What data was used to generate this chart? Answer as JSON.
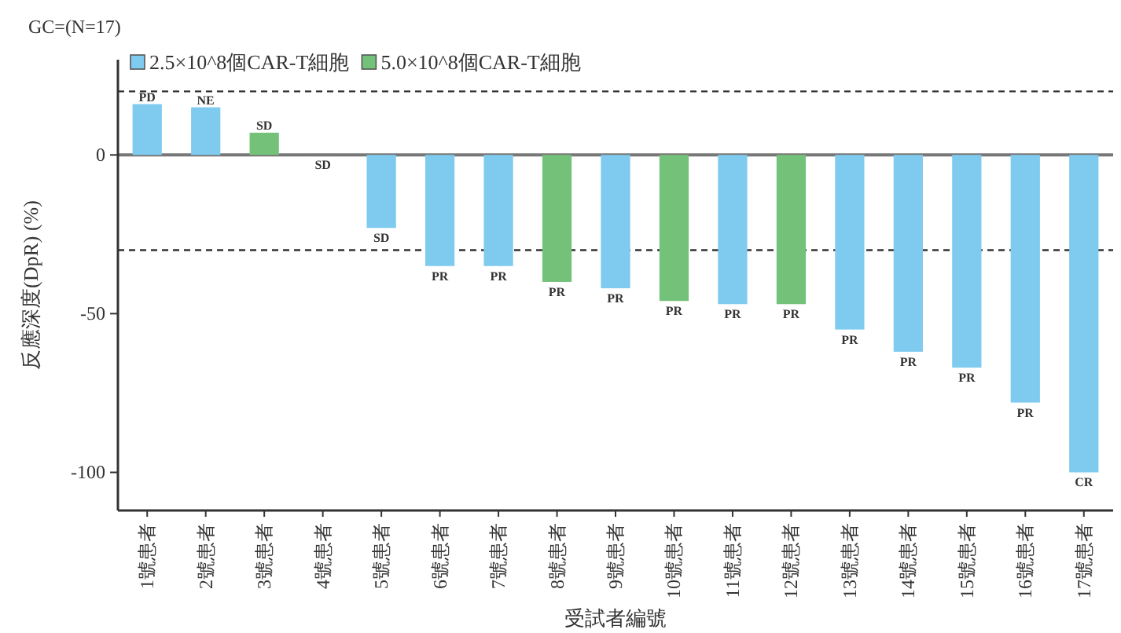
{
  "chart_data": {
    "type": "bar",
    "title": "GC=(N=17)",
    "xlabel": "受試者編號",
    "ylabel": "反應深度(DpR) (%)",
    "categories": [
      "1號患者",
      "2號患者",
      "3號患者",
      "4號患者",
      "5號患者",
      "6號患者",
      "7號患者",
      "8號患者",
      "9號患者",
      "10號患者",
      "11號患者",
      "12號患者",
      "13號患者",
      "14號患者",
      "15號患者",
      "16號患者",
      "17號患者"
    ],
    "series": [
      {
        "name": "2.5×10^8個CAR-T細胞",
        "color": "#7ecbef",
        "values": [
          16,
          15,
          null,
          0,
          -23,
          -35,
          -35,
          null,
          -42,
          null,
          -47,
          null,
          -55,
          -62,
          -67,
          -78,
          -100
        ],
        "value_labels": [
          "PD",
          "NE",
          null,
          "SD",
          "SD",
          "PR",
          "PR",
          null,
          "PR",
          null,
          "PR",
          null,
          "PR",
          "PR",
          "PR",
          "PR",
          "CR"
        ]
      },
      {
        "name": "5.0×10^8個CAR-T細胞",
        "color": "#74c27a",
        "values": [
          null,
          null,
          7,
          null,
          null,
          null,
          null,
          -40,
          null,
          -46,
          null,
          -47,
          null,
          null,
          null,
          null,
          null
        ],
        "value_labels": [
          null,
          null,
          "SD",
          null,
          null,
          null,
          null,
          "PR",
          null,
          "PR",
          null,
          "PR",
          null,
          null,
          null,
          null,
          null
        ]
      }
    ],
    "ylim": [
      -112,
      30
    ],
    "yticks": [
      0,
      -50,
      -100
    ],
    "ref_lines": [
      {
        "axis": "y",
        "value": 20,
        "line_style": "dashed"
      },
      {
        "axis": "y",
        "value": -30,
        "line_style": "dashed"
      },
      {
        "axis": "y",
        "value": 0,
        "line_style": "solid"
      }
    ],
    "legend": "top left"
  }
}
